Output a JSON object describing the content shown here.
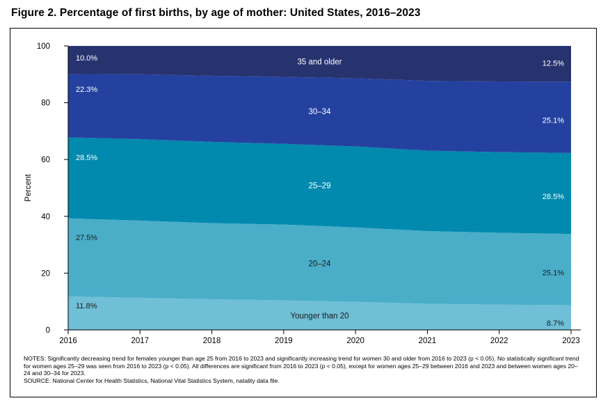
{
  "figure": {
    "title": "Figure 2. Percentage of first births, by age of mother: United States, 2016–2023",
    "notes": "NOTES: Significantly decreasing trend for females younger than age 25 from 2016 to 2023 and significantly increasing trend for women 30 and older from 2016 to 2023 (p < 0.05). No statistically significant trend for women ages 25–29 was seen from 2016 to 2023 (p < 0.05). All differences are significant from 2016 to 2023 (p < 0.05), except for women ages 25–29 between 2016 and 2023 and between women ages 20–24 and 30–34 for 2023.",
    "source": "SOURCE: National Center for Health Statistics, National Vital Statistics System, natality data file."
  },
  "chart_data": {
    "type": "area",
    "stacked": true,
    "x": [
      2016,
      2017,
      2018,
      2019,
      2020,
      2021,
      2022,
      2023
    ],
    "xlabel": "",
    "ylabel": "Percent",
    "ylim": [
      0,
      100
    ],
    "yticks": [
      0,
      20,
      40,
      60,
      80,
      100
    ],
    "grid": false,
    "legend": "none; series labels drawn inside areas",
    "series": [
      {
        "name": "Younger than 20",
        "color": "#6fbfd6",
        "values": [
          11.8,
          11.3,
          10.8,
          10.4,
          9.9,
          9.2,
          8.9,
          8.7
        ],
        "start_label": "11.8%",
        "end_label": "8.7%"
      },
      {
        "name": "20–24",
        "color": "#4aaec9",
        "values": [
          27.5,
          27.2,
          26.8,
          26.7,
          26.2,
          25.6,
          25.3,
          25.1
        ],
        "start_label": "27.5%",
        "end_label": "25.1%"
      },
      {
        "name": "25–29",
        "color": "#0189ae",
        "values": [
          28.5,
          28.7,
          28.6,
          28.4,
          28.5,
          28.3,
          28.4,
          28.5
        ],
        "start_label": "28.5%",
        "end_label": "28.5%"
      },
      {
        "name": "30–34",
        "color": "#2541a0",
        "values": [
          22.3,
          22.8,
          23.3,
          23.6,
          24.0,
          24.6,
          24.9,
          25.1
        ],
        "start_label": "22.3%",
        "end_label": "25.1%"
      },
      {
        "name": "35 and older",
        "color": "#27336f",
        "values": [
          10.0,
          10.0,
          10.5,
          10.9,
          11.4,
          12.3,
          12.5,
          12.5
        ],
        "start_label": "10.0%",
        "end_label": "12.5%"
      }
    ]
  }
}
